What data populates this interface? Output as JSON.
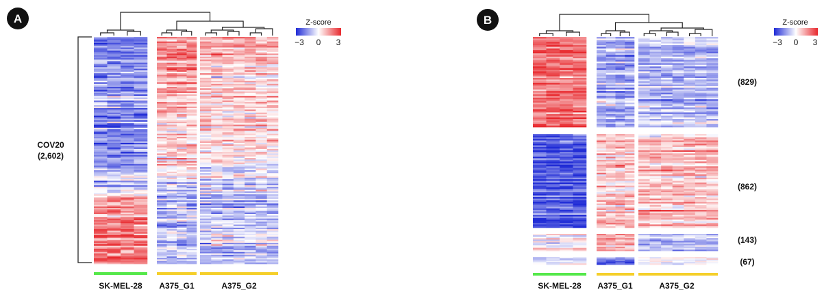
{
  "colors": {
    "low": "#1f2bd6",
    "mid": "#ffffff",
    "high": "#e8292e",
    "sk_mel_28": "#55e84a",
    "a375": "#f5cf2a"
  },
  "chart_data": [
    {
      "type": "heatmap",
      "panel": "A",
      "legend": {
        "title": "Z-score",
        "min_label": "−3",
        "mid_label": "0",
        "max_label": "3",
        "range": [
          -3,
          3
        ]
      },
      "groups": [
        {
          "name": "SK-MEL-28",
          "n_samples": 4,
          "color": "#55e84a"
        },
        {
          "name": "A375_G1",
          "n_samples": 4,
          "color": "#f5cf2a"
        },
        {
          "name": "A375_G2",
          "n_samples": 7,
          "color": "#f5cf2a"
        }
      ],
      "clusters": [
        {
          "label": "COV20",
          "count": "(2,602)",
          "genes": 2602
        }
      ],
      "profiles": {
        "SK-MEL-28": [
          -1.4,
          -1.3,
          -1.2,
          -1.1,
          -1.3,
          -1.2,
          -1.0,
          -0.6,
          1.0,
          1.3,
          1.4,
          1.3
        ],
        "A375_G1": [
          0.9,
          1.0,
          0.8,
          0.7,
          0.6,
          0.5,
          0.3,
          -0.3,
          -0.6,
          -0.5,
          -0.4,
          -0.5
        ],
        "A375_G2": [
          0.6,
          0.7,
          0.5,
          0.6,
          0.5,
          0.4,
          0.2,
          -0.3,
          -0.5,
          -0.6,
          -0.5,
          -0.4
        ]
      }
    },
    {
      "type": "heatmap",
      "panel": "B",
      "legend": {
        "title": "Z-score",
        "min_label": "−3",
        "mid_label": "0",
        "max_label": "3",
        "range": [
          -3,
          3
        ]
      },
      "groups": [
        {
          "name": "SK-MEL-28",
          "n_samples": 4,
          "color": "#55e84a"
        },
        {
          "name": "A375_G1",
          "n_samples": 4,
          "color": "#f5cf2a"
        },
        {
          "name": "A375_G2",
          "n_samples": 7,
          "color": "#f5cf2a"
        }
      ],
      "clusters": [
        {
          "count": "(829)",
          "genes": 829,
          "means": {
            "SK-MEL-28": 1.5,
            "A375_G1": -0.8,
            "A375_G2": -0.7
          }
        },
        {
          "count": "(862)",
          "genes": 862,
          "means": {
            "SK-MEL-28": -1.6,
            "A375_G1": 0.5,
            "A375_G2": 0.6
          }
        },
        {
          "count": "(143)",
          "genes": 143,
          "means": {
            "SK-MEL-28": 0.3,
            "A375_G1": 0.9,
            "A375_G2": -0.6
          }
        },
        {
          "count": "(67)",
          "genes": 67,
          "means": {
            "SK-MEL-28": -0.4,
            "A375_G1": -1.2,
            "A375_G2": 0.2
          }
        }
      ]
    }
  ]
}
